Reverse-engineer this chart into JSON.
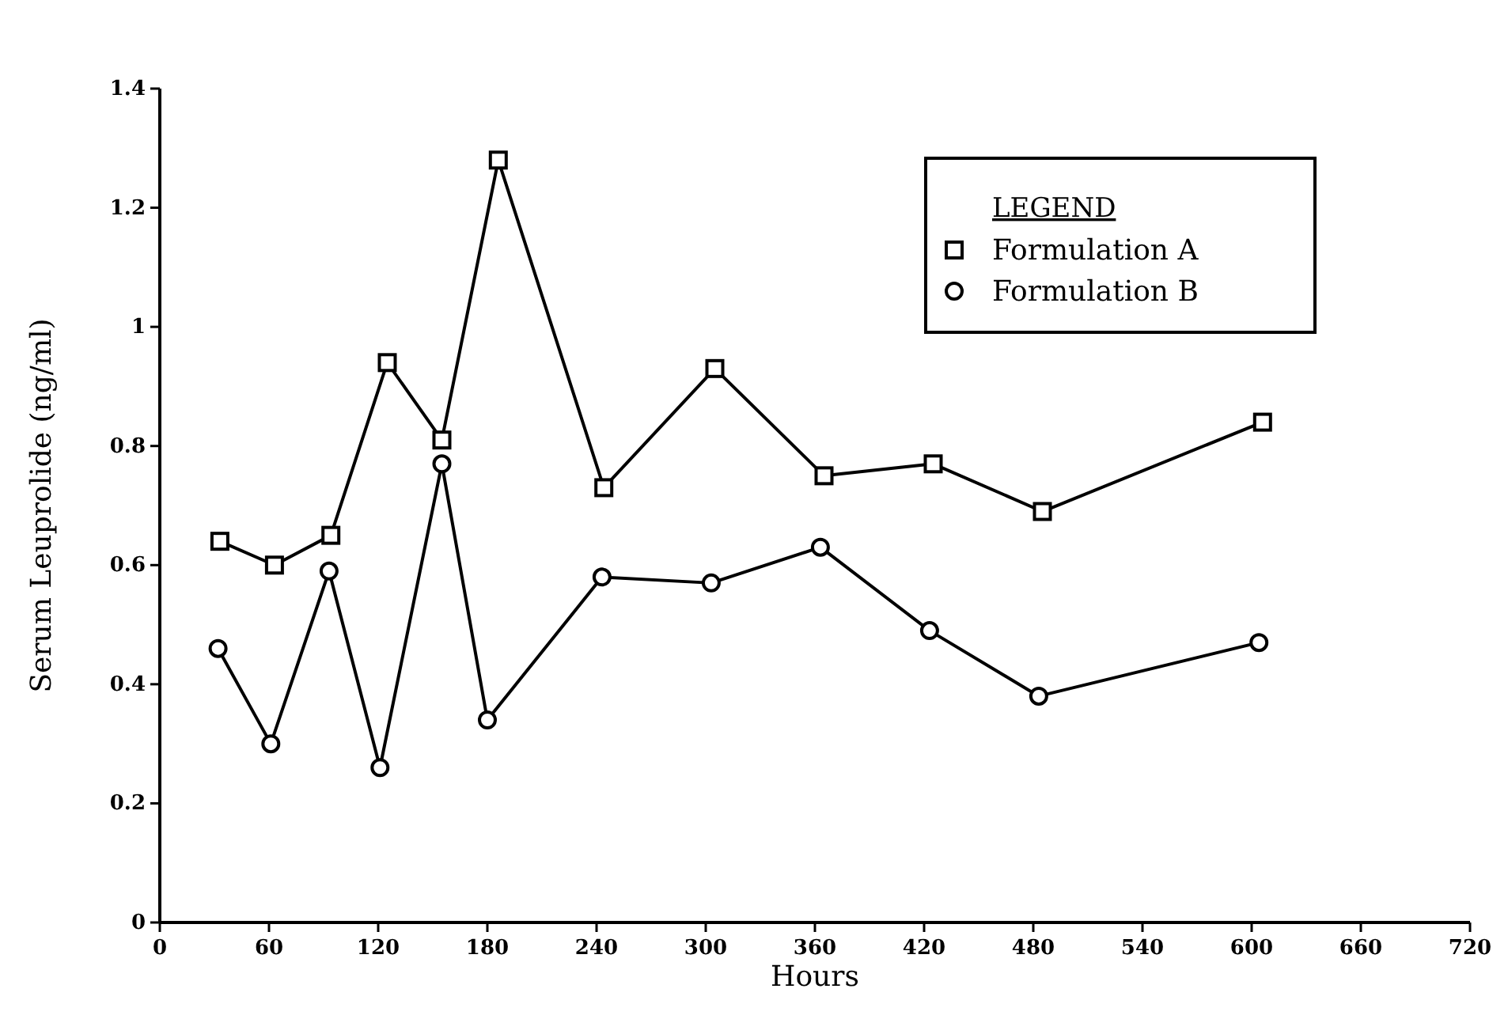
{
  "chart_data": {
    "type": "line",
    "xlabel": "Hours",
    "ylabel": "Serum Leuprolide (ng/ml)",
    "legend_title": "LEGEND",
    "legend": "top right",
    "grid": false,
    "line_style": "solid",
    "xlim": [
      0,
      720
    ],
    "xticks": [
      0,
      60,
      120,
      180,
      240,
      300,
      360,
      420,
      480,
      540,
      600,
      660,
      720
    ],
    "ylim": [
      0,
      1.4
    ],
    "yticks": [
      0,
      0.2,
      0.4,
      0.6,
      0.8,
      1,
      1.2,
      1.4
    ],
    "series": [
      {
        "name": "Formulation A",
        "color": "#000000",
        "marker": "square",
        "x": [
          33,
          63,
          94,
          125,
          155,
          186,
          244,
          305,
          365,
          425,
          485,
          606
        ],
        "values": [
          0.64,
          0.6,
          0.65,
          0.94,
          0.81,
          1.28,
          0.73,
          0.93,
          0.75,
          0.77,
          0.69,
          0.84
        ]
      },
      {
        "name": "Formulation B",
        "color": "#000000",
        "marker": "circle",
        "x": [
          32,
          61,
          93,
          121,
          155,
          180,
          243,
          303,
          363,
          423,
          483,
          604
        ],
        "values": [
          0.46,
          0.3,
          0.59,
          0.26,
          0.77,
          0.34,
          0.58,
          0.57,
          0.63,
          0.49,
          0.38,
          0.47
        ]
      }
    ]
  }
}
